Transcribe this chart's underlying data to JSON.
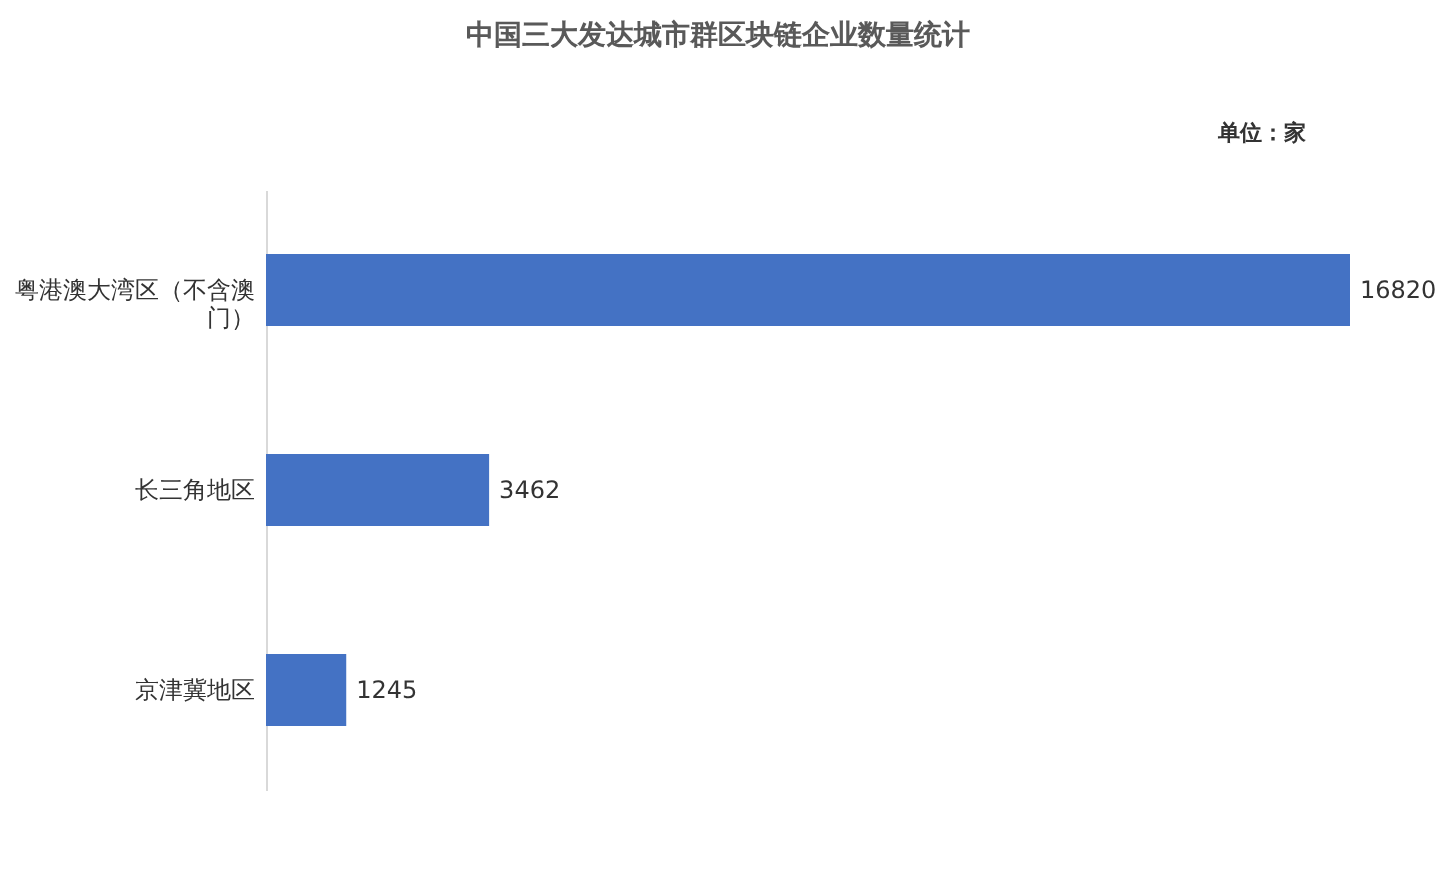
{
  "chart_data": {
    "type": "bar",
    "orientation": "horizontal",
    "title": "中国三大发达城市群区块链企业数量统计",
    "annotations": [
      "单位：家"
    ],
    "categories": [
      "粤港澳大湾区（不含澳门）",
      "长三角地区",
      "京津冀地区"
    ],
    "values": [
      16820,
      3462,
      1245
    ],
    "color": "#4472c4",
    "data_labels": true
  }
}
